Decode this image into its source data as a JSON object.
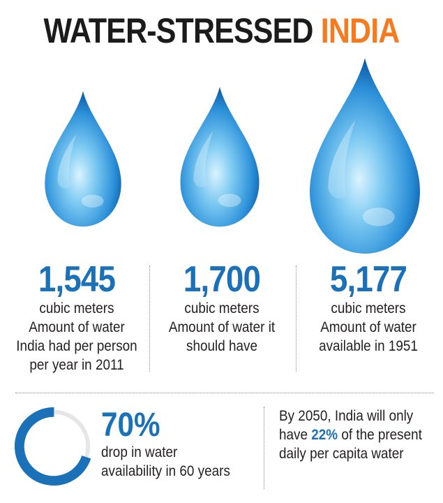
{
  "title": {
    "main": "WATER-STRESSED",
    "accent": "INDIA"
  },
  "colors": {
    "accent_orange": "#f47b20",
    "stat_blue": "#1a71b8",
    "drop_light": "#b8e4fa",
    "drop_mid": "#3aa0e0",
    "drop_dark": "#0b56a0",
    "ring_track": "#e6e6e6"
  },
  "stats": [
    {
      "value": "1,545",
      "unit": "cubic meters",
      "description": "Amount of water\nIndia had per person\nper year in 2011"
    },
    {
      "value": "1,700",
      "unit": "cubic meters",
      "description": "Amount of water it\nshould have"
    },
    {
      "value": "5,177",
      "unit": "cubic meters",
      "description": "Amount of water\navailable in 1951"
    }
  ],
  "drop": {
    "value": "70%",
    "fraction": 0.7,
    "description": "drop in water\navailability in 60 years"
  },
  "projection": {
    "prefix": "By 2050, India will only have ",
    "highlight": "22%",
    "suffix": " of the present daily per capita water"
  }
}
